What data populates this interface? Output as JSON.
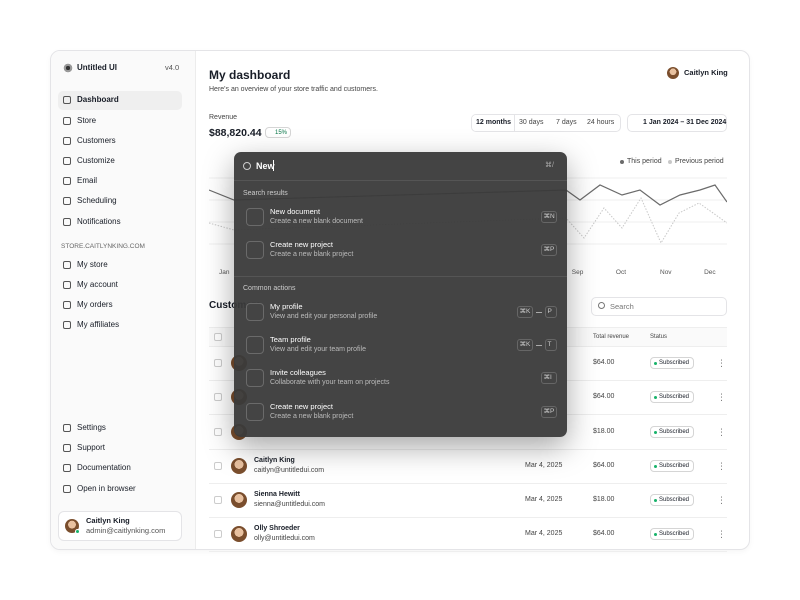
{
  "sidebar": {
    "brand": "Untitled UI",
    "version": "v4.0",
    "nav": [
      "Dashboard",
      "Store",
      "Customers",
      "Customize",
      "Email",
      "Scheduling",
      "Notifications"
    ],
    "store_heading": "STORE.CAITLYNKING.COM",
    "store_nav": [
      "My store",
      "My account",
      "My orders",
      "My affiliates"
    ],
    "footer_nav": [
      "Settings",
      "Support",
      "Documentation",
      "Open in browser"
    ],
    "user": {
      "name": "Caitlyn King",
      "email": "admin@caitlynking.com"
    }
  },
  "header": {
    "title": "My dashboard",
    "subtitle": "Here's an overview of your store traffic and customers.",
    "user": "Caitlyn King"
  },
  "revenue": {
    "label": "Revenue",
    "value": "$88,820.44",
    "change": "15%",
    "ranges": [
      "12 months",
      "30 days",
      "7 days",
      "24 hours"
    ],
    "date_range": "1 Jan 2024 – 31 Dec 2024",
    "legend": [
      "This period",
      "Previous period"
    ],
    "months": [
      "Jan",
      null,
      null,
      null,
      null,
      null,
      null,
      null,
      "Sep",
      "Oct",
      "Nov",
      "Dec"
    ]
  },
  "customers": {
    "title": "Customers",
    "search_placeholder": "Search",
    "columns": [
      "Total revenue",
      "Status"
    ],
    "rows": [
      {
        "revenue": "$64.00",
        "status": "Subscribed"
      },
      {
        "revenue": "$64.00",
        "status": "Subscribed"
      },
      {
        "revenue": "$18.00",
        "status": "Subscribed"
      },
      {
        "name": "Caitlyn King",
        "email": "caitlyn@untitledui.com",
        "date": "Mar 4, 2025",
        "revenue": "$64.00",
        "status": "Subscribed"
      },
      {
        "name": "Sienna Hewitt",
        "email": "sienna@untitledui.com",
        "date": "Mar 4, 2025",
        "revenue": "$18.00",
        "status": "Subscribed"
      },
      {
        "name": "Olly Shroeder",
        "email": "olly@untitledui.com",
        "date": "Mar 4, 2025",
        "revenue": "$64.00",
        "status": "Subscribed"
      }
    ]
  },
  "command_menu": {
    "query": "New",
    "shortcut": "⌘/",
    "groups": [
      {
        "heading": "Search results",
        "items": [
          {
            "title": "New document",
            "description": "Create a new blank document",
            "keys": [
              "⌘N"
            ]
          },
          {
            "title": "Create new project",
            "description": "Create a new blank project",
            "keys": [
              "⌘P"
            ]
          }
        ]
      },
      {
        "heading": "Common actions",
        "items": [
          {
            "title": "My profile",
            "description": "View and edit your personal profile",
            "keys": [
              "⌘K",
              "P"
            ]
          },
          {
            "title": "Team profile",
            "description": "View and edit your team profile",
            "keys": [
              "⌘K",
              "T"
            ]
          },
          {
            "title": "Invite colleagues",
            "description": "Collaborate with your team on projects",
            "keys": [
              "⌘I"
            ]
          },
          {
            "title": "Create new project",
            "description": "Create a new blank project",
            "keys": [
              "⌘P"
            ]
          }
        ]
      }
    ]
  }
}
